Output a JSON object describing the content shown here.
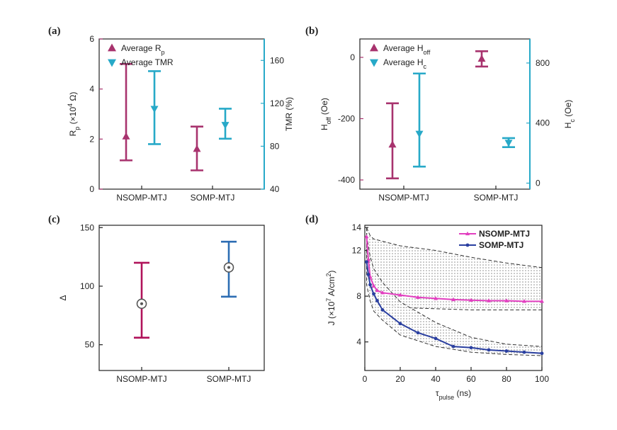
{
  "colors": {
    "magenta": "#a8336e",
    "cyan": "#27a9c8",
    "blue": "#2d6db3",
    "crimson": "#b0125a",
    "nsomp_line": "#e23fc0",
    "somp_line": "#2a3fa0",
    "axis": "#222222"
  },
  "chart_data": [
    {
      "panel": "(a)",
      "type": "errorbar",
      "categories": [
        "NSOMP-MTJ",
        "SOMP-MTJ"
      ],
      "ylabel_left": "R_p (×10^4 Ω)",
      "ylabel_right": "TMR (%)",
      "ylim_left": [
        0,
        6
      ],
      "ylim_right": [
        40,
        180
      ],
      "yticks_left": [
        "0",
        "2",
        "4",
        "6"
      ],
      "yticks_right": [
        "40",
        "80",
        "120",
        "160"
      ],
      "legend": [
        "Average R_p",
        "Average TMR"
      ],
      "series": [
        {
          "name": "Average R_p",
          "axis": "left",
          "marker": "triangle-up",
          "color": "magenta",
          "points": [
            {
              "mean": 2.1,
              "low": 1.15,
              "high": 5.0
            },
            {
              "mean": 1.6,
              "low": 0.75,
              "high": 2.5
            }
          ]
        },
        {
          "name": "Average TMR",
          "axis": "right",
          "marker": "triangle-down",
          "color": "cyan",
          "points": [
            {
              "mean": 115,
              "low": 82,
              "high": 150
            },
            {
              "mean": 100,
              "low": 87,
              "high": 115
            }
          ]
        }
      ]
    },
    {
      "panel": "(b)",
      "type": "errorbar",
      "categories": [
        "NSOMP-MTJ",
        "SOMP-MTJ"
      ],
      "ylabel_left": "H_off (Oe)",
      "ylabel_right": "H_c (Oe)",
      "ylim_left": [
        -430,
        60
      ],
      "ylim_right": [
        -40,
        960
      ],
      "yticks_left": [
        "-400",
        "-200",
        "0"
      ],
      "yticks_right": [
        "0",
        "400",
        "800"
      ],
      "legend": [
        "Average H_off",
        "Average H_c"
      ],
      "series": [
        {
          "name": "Average H_off",
          "axis": "left",
          "marker": "triangle-up",
          "color": "magenta",
          "points": [
            {
              "mean": -285,
              "low": -395,
              "high": -150
            },
            {
              "mean": -5,
              "low": -30,
              "high": 20
            }
          ]
        },
        {
          "name": "Average H_c",
          "axis": "right",
          "marker": "triangle-down",
          "color": "cyan",
          "points": [
            {
              "mean": 330,
              "low": 110,
              "high": 730
            },
            {
              "mean": 270,
              "low": 240,
              "high": 300
            }
          ]
        }
      ]
    },
    {
      "panel": "(c)",
      "type": "errorbar",
      "categories": [
        "NSOMP-MTJ",
        "SOMP-MTJ"
      ],
      "ylabel": "Δ",
      "ylim": [
        28,
        152
      ],
      "yticks": [
        "50",
        "100",
        "150"
      ],
      "series": [
        {
          "marker": "circle",
          "colors": [
            "crimson",
            "blue"
          ],
          "points": [
            {
              "mean": 85,
              "low": 56,
              "high": 120
            },
            {
              "mean": 116,
              "low": 91,
              "high": 138
            }
          ]
        }
      ]
    },
    {
      "panel": "(d)",
      "type": "line",
      "xlabel": "τ_pulse (ns)",
      "ylabel": "J (×10^7 A/cm^2)",
      "xlim": [
        0,
        100
      ],
      "ylim": [
        1.5,
        14.2
      ],
      "xticks": [
        "0",
        "20",
        "40",
        "60",
        "80",
        "100"
      ],
      "yticks": [
        "4",
        "8",
        "12",
        "14"
      ],
      "ytick_values": [
        4,
        8,
        12,
        14
      ],
      "legend": [
        "NSOMP-MTJ",
        "SOMP-MTJ"
      ],
      "series": [
        {
          "name": "NSOMP-MTJ",
          "color": "nsomp_line",
          "x": [
            1,
            2,
            3,
            5,
            7,
            10,
            20,
            30,
            40,
            50,
            60,
            70,
            80,
            90,
            100
          ],
          "y": [
            13.2,
            11.2,
            9.7,
            8.9,
            8.5,
            8.3,
            8.1,
            7.9,
            7.8,
            7.7,
            7.65,
            7.6,
            7.6,
            7.55,
            7.55
          ]
        },
        {
          "name": "SOMP-MTJ",
          "color": "somp_line",
          "x": [
            1,
            2,
            3,
            5,
            7,
            10,
            20,
            30,
            40,
            50,
            60,
            70,
            80,
            90,
            100
          ],
          "y": [
            11.0,
            9.9,
            9.0,
            8.2,
            7.6,
            6.8,
            5.6,
            4.8,
            4.3,
            3.6,
            3.5,
            3.3,
            3.2,
            3.1,
            3.0
          ]
        }
      ],
      "bands": [
        {
          "series": "NSOMP-MTJ",
          "x": [
            1,
            3,
            5,
            10,
            20,
            40,
            60,
            80,
            100
          ],
          "upper": [
            14.0,
            13.3,
            13.0,
            12.8,
            12.4,
            12.0,
            11.4,
            10.9,
            10.5
          ],
          "lower": [
            11.5,
            8.6,
            7.9,
            7.4,
            7.0,
            6.9,
            6.8,
            6.8,
            6.8
          ]
        },
        {
          "series": "SOMP-MTJ",
          "x": [
            1,
            3,
            5,
            10,
            20,
            40,
            60,
            80,
            100
          ],
          "upper": [
            13.3,
            11.5,
            10.4,
            9.2,
            7.5,
            5.7,
            4.4,
            3.8,
            3.6
          ],
          "lower": [
            9.0,
            7.6,
            6.7,
            5.9,
            4.6,
            3.6,
            3.1,
            2.9,
            2.8
          ]
        }
      ]
    }
  ]
}
